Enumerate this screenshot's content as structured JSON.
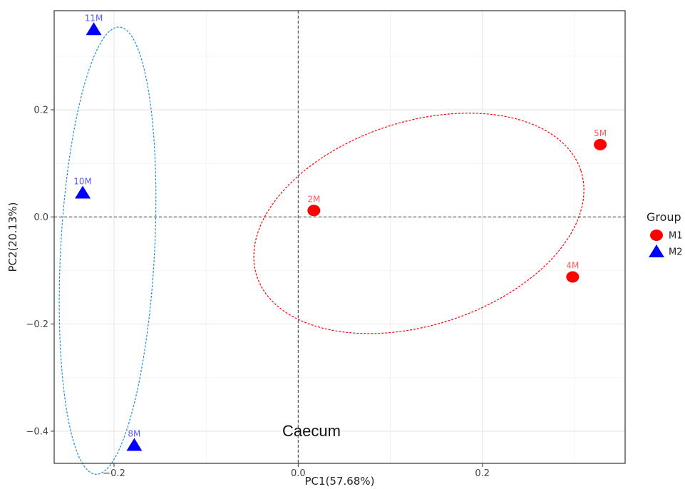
{
  "chart_data": {
    "type": "scatter",
    "title": "",
    "xlabel": "PC1(57.68%)",
    "ylabel": "PC2(20.13%)",
    "xlim": [
      -0.265,
      0.355
    ],
    "ylim": [
      -0.46,
      0.385
    ],
    "xticks": [
      -0.2,
      0.0,
      0.2
    ],
    "yticks": [
      -0.4,
      -0.2,
      0.0,
      0.2
    ],
    "xtick_labels": [
      "−0.2",
      "0.0",
      "0.2"
    ],
    "ytick_labels": [
      "−0.4",
      "−0.2",
      "0.0",
      "0.2"
    ],
    "grid": true,
    "zero_lines": true,
    "legend": {
      "title": "Group",
      "position": "right"
    },
    "caption": "Caecum",
    "series": [
      {
        "name": "M1",
        "marker": "circle",
        "color": "#ff0000",
        "points": [
          {
            "label": "2M",
            "x": 0.017,
            "y": 0.012
          },
          {
            "label": "5M",
            "x": 0.328,
            "y": 0.135
          },
          {
            "label": "4M",
            "x": 0.298,
            "y": -0.112
          }
        ],
        "ellipse": {
          "cx": 0.131,
          "cy": -0.012,
          "rx": 0.185,
          "ry": 0.19,
          "rotation_deg": -18
        }
      },
      {
        "name": "M2",
        "marker": "triangle",
        "color": "#0000ff",
        "points": [
          {
            "label": "11M",
            "x": -0.222,
            "y": 0.35
          },
          {
            "label": "10M",
            "x": -0.234,
            "y": 0.045
          },
          {
            "label": "8M",
            "x": -0.178,
            "y": -0.426
          }
        ],
        "ellipse": {
          "cx": -0.207,
          "cy": -0.063,
          "rx": 0.051,
          "ry": 0.418,
          "rotation_deg": 3
        }
      }
    ]
  }
}
